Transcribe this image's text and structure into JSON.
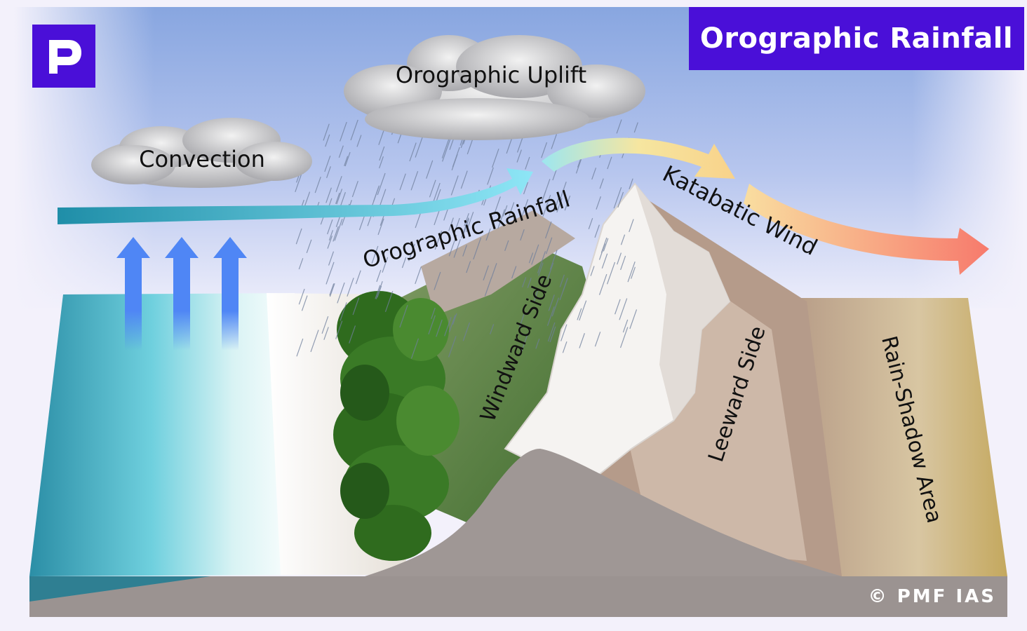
{
  "title": "Orographic Rainfall",
  "labels": {
    "convection": "Convection",
    "orographic_uplift": "Orographic Uplift",
    "orographic_rainfall": "Orographic Rainfall",
    "katabatic_wind": "Katabatic Wind",
    "windward_side": "Windward Side",
    "leeward_side": "Leeward Side",
    "rain_shadow_area": "Rain-Shadow Area"
  },
  "logo_letter": "P",
  "copyright": "© PMF IAS",
  "colors": {
    "brand": "#4a0fd8",
    "sky_top": "#8fa8e0",
    "sea": "#2aa3b8",
    "forest": "#2f6b1e",
    "snow": "#f4f2f0",
    "rain_shadow": "#c8ac6a"
  }
}
